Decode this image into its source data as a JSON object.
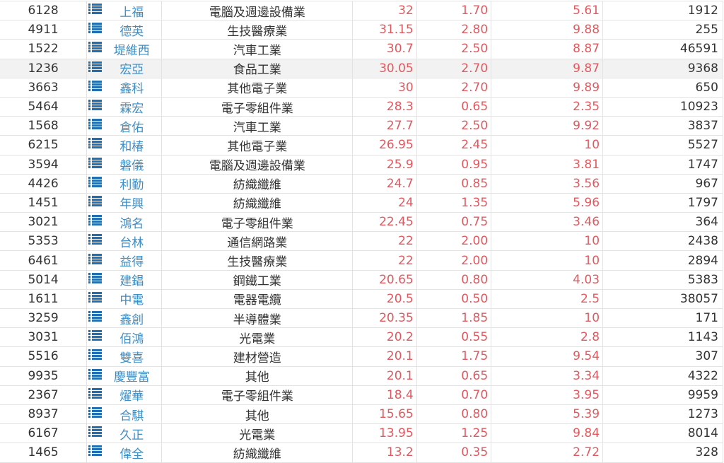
{
  "colors": {
    "up": "#e0595f",
    "name_link": "#3d8ec4",
    "icon": "#1f6fb2",
    "highlight_row": "#f2f2f2"
  },
  "highlighted_row": 3,
  "rows": [
    {
      "code": "6128",
      "name": "上福",
      "industry": "電腦及週邊設備業",
      "price": "32",
      "change": "1.70",
      "pct": "5.61",
      "volume": "1912"
    },
    {
      "code": "4911",
      "name": "德英",
      "industry": "生技醫療業",
      "price": "31.15",
      "change": "2.80",
      "pct": "9.88",
      "volume": "255"
    },
    {
      "code": "1522",
      "name": "堤維西",
      "industry": "汽車工業",
      "price": "30.7",
      "change": "2.50",
      "pct": "8.87",
      "volume": "46591"
    },
    {
      "code": "1236",
      "name": "宏亞",
      "industry": "食品工業",
      "price": "30.05",
      "change": "2.70",
      "pct": "9.87",
      "volume": "9368"
    },
    {
      "code": "3663",
      "name": "鑫科",
      "industry": "其他電子業",
      "price": "30",
      "change": "2.70",
      "pct": "9.89",
      "volume": "650"
    },
    {
      "code": "5464",
      "name": "霖宏",
      "industry": "電子零組件業",
      "price": "28.3",
      "change": "0.65",
      "pct": "2.35",
      "volume": "10923"
    },
    {
      "code": "1568",
      "name": "倉佑",
      "industry": "汽車工業",
      "price": "27.7",
      "change": "2.50",
      "pct": "9.92",
      "volume": "3837"
    },
    {
      "code": "6215",
      "name": "和椿",
      "industry": "其他電子業",
      "price": "26.95",
      "change": "2.45",
      "pct": "10",
      "volume": "5527"
    },
    {
      "code": "3594",
      "name": "磐儀",
      "industry": "電腦及週邊設備業",
      "price": "25.9",
      "change": "0.95",
      "pct": "3.81",
      "volume": "1747"
    },
    {
      "code": "4426",
      "name": "利勤",
      "industry": "紡織纖維",
      "price": "24.7",
      "change": "0.85",
      "pct": "3.56",
      "volume": "967"
    },
    {
      "code": "1451",
      "name": "年興",
      "industry": "紡織纖維",
      "price": "24",
      "change": "1.35",
      "pct": "5.96",
      "volume": "1797"
    },
    {
      "code": "3021",
      "name": "鴻名",
      "industry": "電子零組件業",
      "price": "22.45",
      "change": "0.75",
      "pct": "3.46",
      "volume": "364"
    },
    {
      "code": "5353",
      "name": "台林",
      "industry": "通信網路業",
      "price": "22",
      "change": "2.00",
      "pct": "10",
      "volume": "2438"
    },
    {
      "code": "6461",
      "name": "益得",
      "industry": "生技醫療業",
      "price": "22",
      "change": "2.00",
      "pct": "10",
      "volume": "2894"
    },
    {
      "code": "5014",
      "name": "建錩",
      "industry": "鋼鐵工業",
      "price": "20.65",
      "change": "0.80",
      "pct": "4.03",
      "volume": "5383"
    },
    {
      "code": "1611",
      "name": "中電",
      "industry": "電器電纜",
      "price": "20.5",
      "change": "0.50",
      "pct": "2.5",
      "volume": "38057"
    },
    {
      "code": "3259",
      "name": "鑫創",
      "industry": "半導體業",
      "price": "20.35",
      "change": "1.85",
      "pct": "10",
      "volume": "171"
    },
    {
      "code": "3031",
      "name": "佰鴻",
      "industry": "光電業",
      "price": "20.2",
      "change": "0.55",
      "pct": "2.8",
      "volume": "1143"
    },
    {
      "code": "5516",
      "name": "雙喜",
      "industry": "建材營造",
      "price": "20.1",
      "change": "1.75",
      "pct": "9.54",
      "volume": "307"
    },
    {
      "code": "9935",
      "name": "慶豐富",
      "industry": "其他",
      "price": "20.1",
      "change": "0.65",
      "pct": "3.34",
      "volume": "4322"
    },
    {
      "code": "2367",
      "name": "燿華",
      "industry": "電子零組件業",
      "price": "18.4",
      "change": "0.70",
      "pct": "3.95",
      "volume": "9959"
    },
    {
      "code": "8937",
      "name": "合騏",
      "industry": "其他",
      "price": "15.65",
      "change": "0.80",
      "pct": "5.39",
      "volume": "1273"
    },
    {
      "code": "6167",
      "name": "久正",
      "industry": "光電業",
      "price": "13.95",
      "change": "1.25",
      "pct": "9.84",
      "volume": "8014"
    },
    {
      "code": "1465",
      "name": "偉全",
      "industry": "紡織纖維",
      "price": "13.2",
      "change": "0.35",
      "pct": "2.72",
      "volume": "328"
    }
  ]
}
